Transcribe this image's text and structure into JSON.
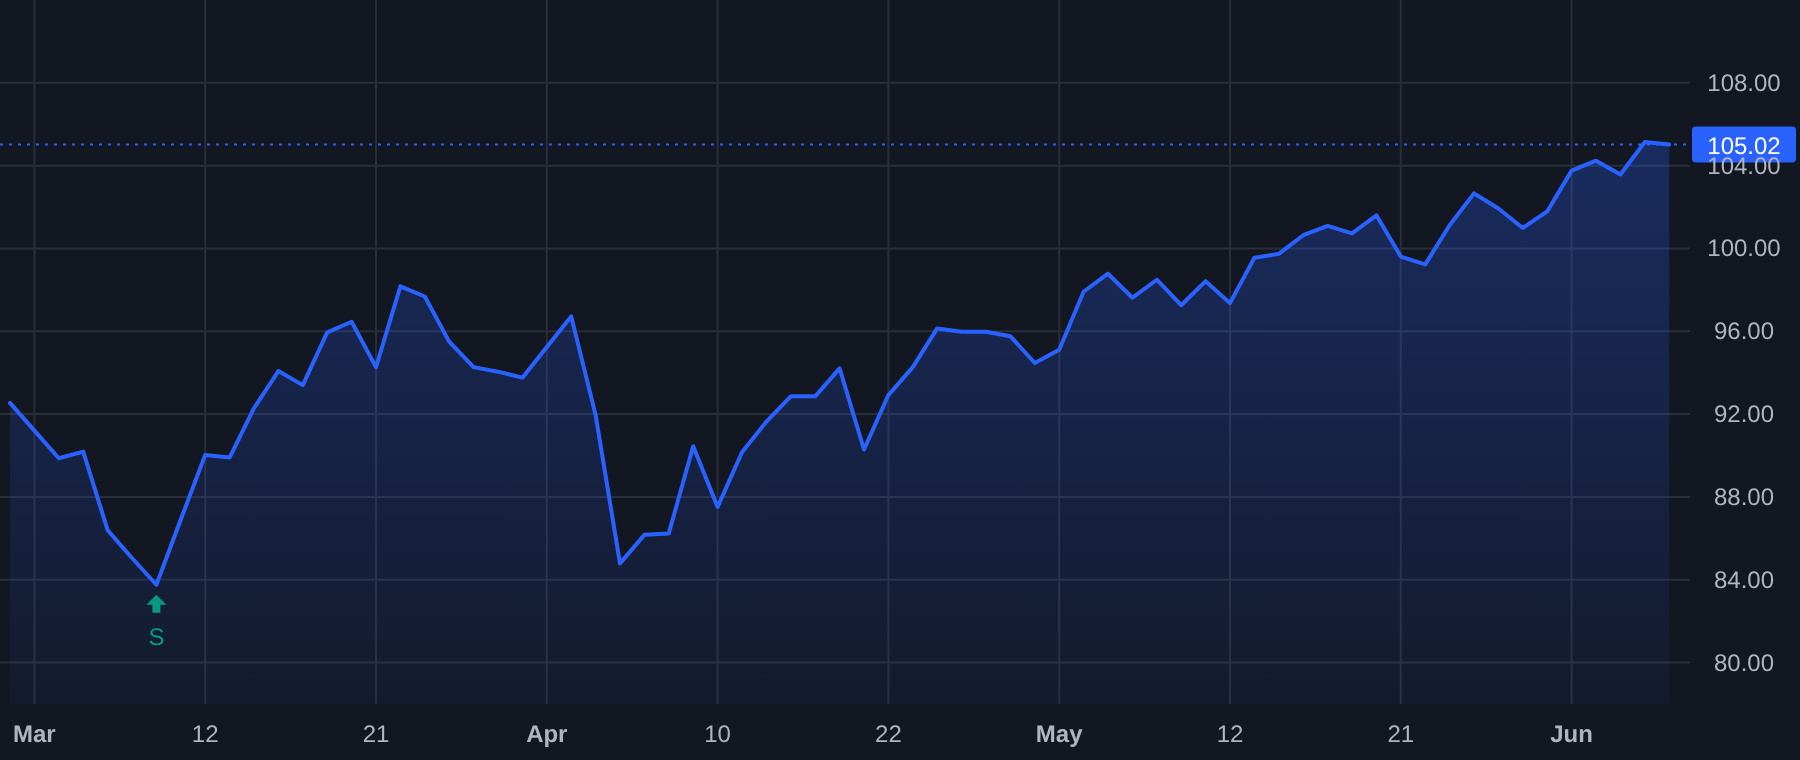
{
  "chart_data": {
    "type": "area",
    "categories": [
      null,
      "Mar",
      null,
      null,
      null,
      null,
      null,
      null,
      "12",
      null,
      null,
      null,
      null,
      null,
      null,
      "21",
      null,
      null,
      null,
      null,
      null,
      null,
      "Apr",
      null,
      null,
      null,
      null,
      null,
      null,
      "10",
      null,
      null,
      null,
      null,
      null,
      null,
      "22",
      null,
      null,
      null,
      null,
      null,
      null,
      "May",
      null,
      null,
      null,
      null,
      null,
      null,
      "12",
      null,
      null,
      null,
      null,
      null,
      null,
      "21",
      null,
      null,
      null,
      null,
      null,
      null,
      "Jun",
      null,
      null,
      null,
      null
    ],
    "series": [
      {
        "color": "#2962ff",
        "values": [
          92.54,
          91.2,
          89.87,
          90.19,
          86.4,
          85.05,
          83.76,
          86.91,
          90.03,
          89.9,
          92.29,
          94.08,
          93.4,
          95.95,
          96.46,
          94.27,
          98.17,
          97.68,
          95.5,
          94.27,
          94.05,
          93.76,
          95.24,
          96.72,
          91.96,
          84.79,
          86.17,
          86.24,
          90.45,
          87.52,
          90.16,
          91.64,
          92.86,
          92.86,
          94.21,
          90.29,
          92.92,
          94.27,
          96.14,
          95.98,
          95.98,
          95.76,
          94.47,
          95.11,
          97.91,
          98.78,
          97.62,
          98.49,
          97.26,
          98.42,
          97.36,
          99.55,
          99.74,
          100.64,
          101.09,
          100.73,
          101.6,
          99.61,
          99.23,
          101.12,
          102.66,
          101.93,
          100.99,
          101.79,
          103.76,
          104.24,
          103.57,
          105.14,
          105.02
        ]
      }
    ],
    "ylim": [
      78,
      112
    ],
    "yticks": [
      {
        "value": 80,
        "label": "80.00"
      },
      {
        "value": 84,
        "label": "84.00"
      },
      {
        "value": 88,
        "label": "88.00"
      },
      {
        "value": 92,
        "label": "92.00"
      },
      {
        "value": 96,
        "label": "96.00"
      },
      {
        "value": 100,
        "label": "100.00"
      },
      {
        "value": 104,
        "label": "104.00"
      },
      {
        "value": 108,
        "label": "108.00"
      }
    ],
    "grid": true,
    "ref_lines": [
      {
        "axis": "y",
        "value": 105.02,
        "label": "105.02",
        "color": "#2962ff",
        "line_style": "dotted"
      }
    ],
    "annotations": [
      {
        "text": "S",
        "y": 83.76
      }
    ]
  }
}
